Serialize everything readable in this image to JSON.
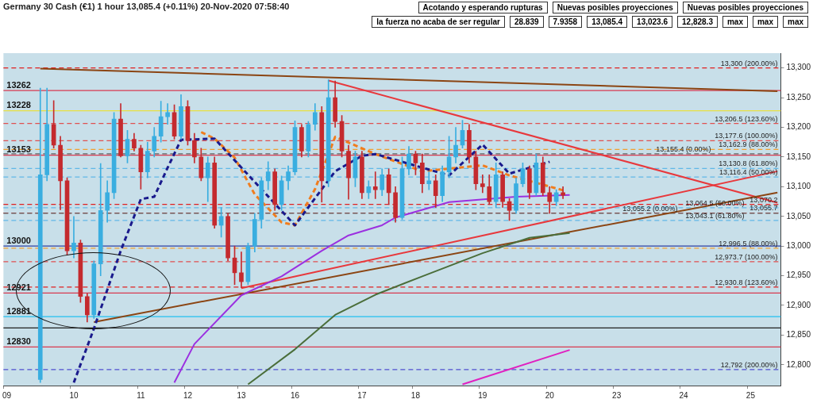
{
  "chart_data": {
    "type": "candlestick",
    "title": "Germany 30 Cash (€1)   1 hour   13,085.4 (+0.11%)   20-Nov-2020 07:58:40",
    "ylim": [
      12765,
      13325
    ],
    "yticks": [
      {
        "value": 12800,
        "label": "12,800"
      },
      {
        "value": 12850,
        "label": "12,850"
      },
      {
        "value": 12900,
        "label": "12,900"
      },
      {
        "value": 12950,
        "label": "12,950"
      },
      {
        "value": 13000,
        "label": "13,000"
      },
      {
        "value": 13050,
        "label": "13,050"
      },
      {
        "value": 13100,
        "label": "13,100"
      },
      {
        "value": 13150,
        "label": "13,150"
      },
      {
        "value": 13200,
        "label": "13,200"
      },
      {
        "value": 13250,
        "label": "13,250"
      },
      {
        "value": 13300,
        "label": "13,300"
      }
    ],
    "categories": [
      "09",
      null,
      null,
      null,
      null,
      null,
      null,
      null,
      null,
      null,
      "10",
      null,
      null,
      null,
      null,
      null,
      null,
      null,
      null,
      null,
      "11",
      null,
      null,
      null,
      null,
      null,
      null,
      "12",
      null,
      null,
      null,
      null,
      null,
      null,
      null,
      "13",
      null,
      null,
      null,
      null,
      null,
      null,
      null,
      "16",
      null,
      null,
      null,
      null,
      null,
      null,
      null,
      null,
      null,
      "17",
      null,
      null,
      null,
      null,
      null,
      null,
      null,
      "18",
      null,
      null,
      null,
      null,
      null,
      null,
      null,
      null,
      null,
      "19",
      null,
      null,
      null,
      null,
      null,
      null,
      null,
      null,
      null,
      "20",
      null,
      null,
      null,
      null,
      null,
      null,
      null,
      null,
      null,
      "23",
      null,
      null,
      null,
      null,
      null,
      null,
      null,
      null,
      null,
      "24",
      null,
      null,
      null,
      null,
      null,
      null,
      null,
      null,
      null,
      "25",
      null,
      null,
      null,
      null
    ],
    "ohlc": [
      null,
      null,
      null,
      null,
      null,
      [
        12775,
        13266,
        12770,
        13120
      ],
      [
        13120,
        13266,
        13110,
        13205
      ],
      [
        13205,
        13245,
        13165,
        13170
      ],
      [
        13170,
        13185,
        13061,
        13110
      ],
      [
        13110,
        13115,
        12985,
        12992
      ],
      [
        12992,
        13050,
        12980,
        13005
      ],
      [
        13005,
        13010,
        12905,
        12915
      ],
      [
        12915,
        12920,
        12872,
        12884
      ],
      [
        12884,
        12975,
        12878,
        12970
      ],
      [
        12970,
        13139,
        12950,
        13060
      ],
      [
        13060,
        13110,
        13040,
        13090
      ],
      [
        13090,
        13225,
        13080,
        13214
      ],
      [
        13214,
        13240,
        13150,
        13152
      ],
      [
        13152,
        13195,
        13140,
        13180
      ],
      [
        13180,
        13190,
        13160,
        13165
      ],
      [
        13165,
        13170,
        13096,
        13125
      ],
      [
        13125,
        13175,
        13115,
        13160
      ],
      [
        13160,
        13200,
        13150,
        13185
      ],
      [
        13185,
        13244,
        13175,
        13218
      ],
      [
        13218,
        13240,
        13205,
        13225
      ],
      [
        13225,
        13238,
        13180,
        13185
      ],
      [
        13185,
        13255,
        13180,
        13235
      ],
      [
        13235,
        13245,
        13170,
        13178
      ],
      [
        13178,
        13190,
        13140,
        13150
      ],
      [
        13150,
        13165,
        13110,
        13115
      ],
      [
        13115,
        13150,
        13075,
        13140
      ],
      [
        13140,
        13150,
        13030,
        13035
      ],
      [
        13035,
        13065,
        13015,
        13050
      ],
      [
        13050,
        13055,
        12975,
        12980
      ],
      [
        12980,
        13000,
        12935,
        12955
      ],
      [
        12955,
        12990,
        12930,
        12940
      ],
      [
        12940,
        13005,
        12935,
        13000
      ],
      [
        13000,
        13055,
        12990,
        13045
      ],
      [
        13045,
        13115,
        13030,
        13110
      ],
      [
        13110,
        13142,
        13095,
        13125
      ],
      [
        13125,
        13130,
        13060,
        13070
      ],
      [
        13070,
        13118,
        13060,
        13110
      ],
      [
        13110,
        13135,
        13095,
        13125
      ],
      [
        13125,
        13211,
        13120,
        13200
      ],
      [
        13200,
        13205,
        13150,
        13160
      ],
      [
        13160,
        13210,
        13150,
        13205
      ],
      [
        13205,
        13240,
        13195,
        13225
      ],
      [
        13225,
        13235,
        13074,
        13110
      ],
      [
        13110,
        13280,
        13100,
        13250
      ],
      [
        13250,
        13278,
        13200,
        13210
      ],
      [
        13210,
        13220,
        13150,
        13160
      ],
      [
        13160,
        13170,
        13079,
        13115
      ],
      [
        13115,
        13160,
        13100,
        13150
      ],
      [
        13150,
        13160,
        13080,
        13090
      ],
      [
        13090,
        13110,
        13080,
        13100
      ],
      [
        13100,
        13125,
        13080,
        13095
      ],
      [
        13095,
        13130,
        13085,
        13120
      ],
      [
        13120,
        13130,
        13070,
        13090
      ],
      [
        13090,
        13100,
        13040,
        13048
      ],
      [
        13048,
        13150,
        13045,
        13130
      ],
      [
        13130,
        13168,
        13120,
        13155
      ],
      [
        13155,
        13160,
        13120,
        13140
      ],
      [
        13140,
        13155,
        13090,
        13105
      ],
      [
        13105,
        13125,
        13095,
        13110
      ],
      [
        13110,
        13120,
        13065,
        13085
      ],
      [
        13085,
        13135,
        13075,
        13125
      ],
      [
        13125,
        13185,
        13115,
        13150
      ],
      [
        13150,
        13200,
        13140,
        13170
      ],
      [
        13170,
        13212,
        13165,
        13195
      ],
      [
        13195,
        13205,
        13140,
        13150
      ],
      [
        13150,
        13160,
        13095,
        13105
      ],
      [
        13105,
        13120,
        13090,
        13100
      ],
      [
        13100,
        13120,
        13070,
        13075
      ],
      [
        13075,
        13140,
        13065,
        13120
      ],
      [
        13120,
        13125,
        13065,
        13075
      ],
      [
        13075,
        13080,
        13043,
        13060
      ],
      [
        13060,
        13115,
        13055,
        13105
      ],
      [
        13105,
        13140,
        13100,
        13130
      ],
      [
        13130,
        13135,
        13080,
        13090
      ],
      [
        13090,
        13155,
        13085,
        13140
      ],
      [
        13140,
        13150,
        13085,
        13090
      ],
      [
        13090,
        13100,
        13055,
        13075
      ],
      [
        13075,
        13095,
        13068,
        13090
      ],
      [
        13090,
        13100,
        13080,
        13085.4
      ],
      null,
      null,
      null,
      null,
      null,
      null,
      null,
      null,
      null,
      null,
      null,
      null,
      null,
      null,
      null,
      null,
      null,
      null,
      null,
      null,
      null,
      null,
      null,
      null,
      null,
      null,
      null,
      null,
      null,
      null,
      null,
      null
    ],
    "colors": [
      null,
      null,
      null,
      null,
      null,
      "#3aaee0",
      "#3aaee0",
      "#c42a2e",
      "#c42a2e",
      "#c42a2e",
      "#3aaee0",
      "#c42a2e",
      "#c42a2e",
      "#3aaee0",
      "#3aaee0",
      "#3aaee0",
      "#3aaee0",
      "#c42a2e",
      "#3aaee0",
      "#c42a2e",
      "#c42a2e",
      "#3aaee0",
      "#3aaee0",
      "#3aaee0",
      "#3aaee0",
      "#c42a2e",
      "#3aaee0",
      "#c42a2e",
      "#c42a2e",
      "#c42a2e",
      "#3aaee0",
      "#c42a2e",
      "#3aaee0",
      "#c42a2e",
      "#c42a2e",
      "#c42a2e",
      "#3aaee0",
      "#3aaee0",
      "#3aaee0",
      "#3aaee0",
      "#c42a2e",
      "#3aaee0",
      "#3aaee0",
      "#3aaee0",
      "#c42a2e",
      "#3aaee0",
      "#3aaee0",
      "#c42a2e",
      "#3aaee0",
      "#c42a2e",
      "#c42a2e",
      "#c42a2e",
      "#3aaee0",
      "#c42a2e",
      "#3aaee0",
      "#c42a2e",
      "#3aaee0",
      "#c42a2e",
      "#c42a2e",
      "#3aaee0",
      "#3aaee0",
      "#c42a2e",
      "#c42a2e",
      "#3aaee0",
      "#c42a2e",
      "#3aaee0",
      "#3aaee0",
      "#3aaee0",
      "#3aaee0",
      "#c42a2e",
      "#c42a2e",
      "#c42a2e",
      "#c42a2e",
      "#3aaee0",
      "#c42a2e",
      "#c42a2e",
      "#3aaee0",
      "#3aaee0",
      "#c42a2e",
      "#3aaee0",
      "#c42a2e",
      "#c42a2e",
      "#3aaee0",
      "#c42a2e",
      null,
      null,
      null,
      null,
      null,
      null,
      null,
      null,
      null,
      null,
      null,
      null,
      null,
      null,
      null,
      null,
      null,
      null,
      null,
      null,
      null,
      null,
      null,
      null,
      null,
      null,
      null,
      null,
      null,
      null,
      null,
      null
    ],
    "series": [
      {
        "type": "line",
        "color": "#1a1a8c",
        "line_style": "dashed",
        "values": [
          null,
          null,
          null,
          null,
          null,
          null,
          null,
          null,
          null,
          null,
          12770,
          null,
          null,
          12861,
          null,
          null,
          null,
          12992,
          null,
          null,
          13079,
          null,
          13083,
          null,
          13132,
          null,
          13179,
          null,
          null,
          null,
          null,
          13181,
          null,
          null,
          null,
          null,
          null,
          null,
          null,
          null,
          null,
          null,
          null,
          13035,
          null,
          null,
          null,
          null,
          null,
          13126,
          null,
          null,
          null,
          13152,
          null,
          13155,
          null,
          null,
          null,
          null,
          null,
          null,
          null,
          null,
          null,
          null,
          13119,
          null,
          null,
          null,
          null,
          13171,
          null,
          null,
          null,
          13122,
          null,
          null,
          null,
          null,
          null,
          13142,
          null,
          null,
          null,
          null,
          null,
          null,
          null,
          null,
          null,
          null,
          null,
          null,
          null,
          null,
          null,
          null,
          null,
          null,
          null,
          null,
          null,
          null,
          null,
          null,
          null,
          null,
          null,
          null,
          null,
          null,
          null,
          null,
          null,
          null
        ]
      },
      {
        "type": "line",
        "color": "#f07d1e",
        "line_style": "dashed",
        "values": [
          null,
          null,
          null,
          null,
          null,
          null,
          null,
          null,
          null,
          null,
          null,
          null,
          null,
          null,
          null,
          null,
          null,
          null,
          null,
          null,
          null,
          null,
          null,
          null,
          null,
          null,
          null,
          null,
          null,
          13192,
          null,
          13181,
          null,
          null,
          13149,
          null,
          null,
          13087,
          null,
          null,
          null,
          13040,
          null,
          13035,
          null,
          null,
          13096,
          null,
          null,
          13184,
          null,
          null,
          null,
          null,
          null,
          13155,
          null,
          null,
          null,
          null,
          null,
          null,
          13126,
          null,
          null,
          null,
          null,
          null,
          null,
          null,
          null,
          13136,
          null,
          null,
          null,
          13119,
          null,
          null,
          null,
          null,
          null,
          null,
          null,
          13094,
          null,
          null,
          null,
          null,
          null,
          null,
          null,
          null,
          null,
          null,
          null,
          null,
          null,
          null,
          null,
          null,
          null,
          null,
          null,
          null,
          null,
          null,
          null,
          null,
          null,
          null,
          null,
          null,
          null,
          null,
          null,
          null
        ]
      },
      {
        "type": "line",
        "color": "#9b30e0",
        "values": [
          null,
          null,
          null,
          null,
          null,
          null,
          null,
          null,
          null,
          null,
          null,
          null,
          null,
          null,
          null,
          null,
          null,
          null,
          null,
          null,
          null,
          null,
          null,
          null,
          null,
          12770,
          null,
          null,
          12835,
          null,
          null,
          null,
          null,
          null,
          null,
          12917,
          null,
          null,
          null,
          null,
          null,
          12949,
          null,
          null,
          null,
          null,
          null,
          12992,
          null,
          null,
          null,
          13018,
          null,
          null,
          null,
          null,
          13035,
          null,
          13048,
          null,
          null,
          null,
          null,
          null,
          null,
          null,
          13074,
          null,
          null,
          null,
          null,
          null,
          null,
          null,
          null,
          null,
          13083,
          null,
          null,
          null,
          null,
          null,
          null,
          null,
          13086,
          null,
          null,
          null,
          null,
          null,
          null,
          null,
          null,
          null,
          null,
          null,
          null,
          null,
          null,
          null,
          null,
          null,
          null,
          null,
          null,
          null,
          null,
          null,
          null,
          null,
          null,
          null,
          null,
          null,
          null,
          null
        ]
      },
      {
        "type": "line",
        "color": "#4a6e3a",
        "values": [
          null,
          null,
          null,
          null,
          null,
          null,
          null,
          null,
          null,
          null,
          null,
          null,
          null,
          null,
          null,
          null,
          null,
          null,
          null,
          null,
          null,
          null,
          null,
          null,
          null,
          null,
          null,
          null,
          null,
          null,
          null,
          null,
          null,
          null,
          null,
          null,
          12767,
          null,
          null,
          null,
          null,
          null,
          null,
          12826,
          null,
          null,
          null,
          null,
          null,
          12884,
          null,
          null,
          null,
          null,
          null,
          12918,
          null,
          null,
          null,
          null,
          null,
          null,
          12949,
          null,
          null,
          null,
          null,
          null,
          null,
          null,
          null,
          12988,
          null,
          null,
          null,
          null,
          null,
          null,
          13014,
          null,
          null,
          null,
          null,
          null,
          13022,
          null,
          null,
          null,
          null,
          null,
          null,
          null,
          null,
          null,
          null,
          null,
          null,
          null,
          null,
          null,
          null,
          null,
          null,
          null,
          null,
          null,
          null,
          null,
          null,
          null,
          null,
          null,
          null,
          null,
          null,
          null
        ]
      },
      {
        "type": "line",
        "color": "#e020c0",
        "values": [
          null,
          null,
          null,
          null,
          null,
          null,
          null,
          null,
          null,
          null,
          null,
          null,
          null,
          null,
          null,
          null,
          null,
          null,
          null,
          null,
          null,
          null,
          null,
          null,
          null,
          null,
          null,
          null,
          null,
          null,
          null,
          null,
          null,
          null,
          null,
          null,
          null,
          null,
          null,
          null,
          null,
          null,
          null,
          null,
          null,
          null,
          null,
          null,
          null,
          null,
          null,
          null,
          null,
          null,
          null,
          null,
          null,
          null,
          null,
          null,
          null,
          null,
          null,
          null,
          null,
          null,
          null,
          null,
          12767,
          null,
          null,
          null,
          null,
          null,
          null,
          null,
          null,
          null,
          null,
          null,
          null,
          null,
          null,
          null,
          12825,
          null,
          null,
          null,
          null,
          null,
          null,
          null,
          null,
          null,
          null,
          null,
          null,
          null,
          null,
          null,
          null,
          null,
          null,
          null,
          null,
          null,
          null,
          null,
          null,
          null,
          null,
          null,
          null,
          null,
          null,
          null
        ]
      },
      {
        "type": "line",
        "color": "#8b4513",
        "values": [
          null,
          null,
          null,
          null,
          null,
          13299,
          null,
          null,
          null,
          null,
          null,
          null,
          null,
          null,
          null,
          null,
          null,
          null,
          null,
          null,
          null,
          null,
          null,
          null,
          null,
          null,
          null,
          null,
          null,
          null,
          null,
          null,
          null,
          null,
          null,
          null,
          null,
          null,
          null,
          null,
          null,
          null,
          null,
          null,
          null,
          null,
          null,
          null,
          null,
          null,
          null,
          null,
          null,
          null,
          null,
          null,
          null,
          null,
          null,
          null,
          null,
          null,
          null,
          null,
          null,
          null,
          null,
          null,
          null,
          null,
          null,
          null,
          null,
          null,
          null,
          null,
          null,
          null,
          null,
          null,
          null,
          null,
          null,
          null,
          null,
          null,
          null,
          null,
          null,
          null,
          null,
          null,
          null,
          null,
          null,
          null,
          null,
          null,
          null,
          null,
          null,
          null,
          null,
          null,
          null,
          null,
          null,
          null,
          null,
          null,
          null,
          null,
          null,
          null,
          null,
          13261
        ]
      },
      {
        "type": "line",
        "color": "#8b4513",
        "values": [
          null,
          null,
          null,
          null,
          null,
          null,
          null,
          null,
          null,
          null,
          null,
          null,
          null,
          12872,
          null,
          null,
          null,
          null,
          null,
          null,
          null,
          null,
          null,
          null,
          null,
          null,
          null,
          null,
          null,
          null,
          null,
          null,
          null,
          null,
          null,
          null,
          null,
          null,
          null,
          null,
          null,
          null,
          null,
          null,
          null,
          null,
          null,
          null,
          null,
          null,
          null,
          null,
          null,
          null,
          null,
          null,
          null,
          null,
          null,
          null,
          null,
          null,
          null,
          null,
          null,
          null,
          null,
          null,
          null,
          null,
          null,
          null,
          null,
          null,
          null,
          null,
          null,
          null,
          null,
          null,
          null,
          null,
          null,
          null,
          null,
          null,
          null,
          null,
          null,
          null,
          null,
          null,
          null,
          null,
          null,
          null,
          null,
          null,
          null,
          null,
          null,
          null,
          null,
          null,
          null,
          null,
          null,
          null,
          null,
          null,
          null,
          null,
          null,
          null,
          null,
          13090
        ]
      },
      {
        "type": "line",
        "color": "#e8383c",
        "values": [
          null,
          null,
          null,
          null,
          null,
          null,
          null,
          null,
          null,
          null,
          null,
          null,
          null,
          null,
          null,
          null,
          null,
          null,
          null,
          null,
          null,
          null,
          null,
          null,
          null,
          null,
          null,
          null,
          null,
          null,
          null,
          null,
          null,
          null,
          null,
          null,
          null,
          null,
          null,
          null,
          null,
          null,
          null,
          null,
          null,
          null,
          null,
          null,
          13279,
          null,
          null,
          null,
          null,
          null,
          null,
          null,
          null,
          null,
          null,
          null,
          null,
          null,
          null,
          null,
          null,
          null,
          null,
          null,
          null,
          null,
          null,
          null,
          null,
          null,
          null,
          null,
          null,
          null,
          null,
          null,
          null,
          null,
          null,
          null,
          null,
          null,
          null,
          null,
          null,
          null,
          null,
          null,
          null,
          null,
          null,
          null,
          null,
          null,
          null,
          null,
          null,
          null,
          null,
          null,
          null,
          null,
          null,
          null,
          null,
          null,
          null,
          null,
          null,
          null,
          null,
          13073
        ]
      },
      {
        "type": "line",
        "color": "#e8383c",
        "values": [
          null,
          null,
          null,
          null,
          null,
          null,
          null,
          null,
          null,
          null,
          null,
          null,
          null,
          null,
          null,
          null,
          null,
          null,
          null,
          null,
          null,
          null,
          null,
          null,
          null,
          null,
          null,
          null,
          null,
          null,
          null,
          null,
          null,
          null,
          null,
          12929,
          null,
          null,
          null,
          null,
          null,
          null,
          null,
          null,
          null,
          null,
          null,
          null,
          null,
          null,
          null,
          null,
          null,
          null,
          null,
          null,
          null,
          null,
          null,
          null,
          null,
          null,
          null,
          null,
          null,
          null,
          null,
          null,
          null,
          null,
          null,
          null,
          null,
          null,
          null,
          null,
          null,
          null,
          null,
          null,
          null,
          null,
          null,
          null,
          null,
          null,
          null,
          null,
          null,
          null,
          null,
          null,
          null,
          null,
          null,
          null,
          null,
          null,
          null,
          null,
          null,
          null,
          null,
          null,
          null,
          null,
          null,
          null,
          null,
          null,
          null,
          null,
          null,
          null,
          null,
          13126
        ]
      }
    ],
    "ref_lines": [
      {
        "axis": "y",
        "value": 13300,
        "label": "13,300 (200.00%)",
        "color": "#e02020",
        "line_style": "dashed"
      },
      {
        "axis": "y",
        "value": 13262,
        "label": "13262",
        "color": "#d83a50"
      },
      {
        "axis": "y",
        "value": 13228,
        "label": "13228",
        "color": "#e8e040"
      },
      {
        "axis": "y",
        "value": 13206.5,
        "label": "13,206.5 (123.60%)",
        "color": "#e05050",
        "line_style": "dashed"
      },
      {
        "axis": "y",
        "value": 13177.6,
        "label": "13,177.6 (100.00%)",
        "color": "#e05050",
        "line_style": "dashed"
      },
      {
        "axis": "y",
        "value": 13162.9,
        "label": "13,162.9 (88.00%)",
        "color": "#f0a030",
        "line_style": "dashed"
      },
      {
        "axis": "y",
        "value": 13155.4,
        "label": "13,155.4 (0.00%)",
        "color": "#606060",
        "line_style": "dashed"
      },
      {
        "axis": "y",
        "value": 13153,
        "label": "13153",
        "color": "#d83a50"
      },
      {
        "axis": "y",
        "value": 13130.8,
        "label": "13,130.8 (61.80%)",
        "color": "#60b8e8",
        "line_style": "dashed"
      },
      {
        "axis": "y",
        "value": 13116.4,
        "label": "13,116.4 (50.00%)",
        "color": "#60b8e8",
        "line_style": "dashed"
      },
      {
        "axis": "y",
        "value": 13070.2,
        "label": "13,070.2",
        "color": "#e02020",
        "line_style": "dashed"
      },
      {
        "axis": "y",
        "value": 13064.5,
        "label": "13,064.5 (50.00%)",
        "color": "#60b8e8",
        "line_style": "dashed"
      },
      {
        "axis": "y",
        "value": 13055.7,
        "label": "13,055.7",
        "color": "#e02020",
        "line_style": "dashed"
      },
      {
        "axis": "y",
        "value": 13055.2,
        "label": "13,055.2 (0.00%)",
        "color": "#606060",
        "line_style": "dashed"
      },
      {
        "axis": "y",
        "value": 13043.1,
        "label": "13,043.1 (61.80%)",
        "color": "#60b8e8",
        "line_style": "dashed"
      },
      {
        "axis": "y",
        "value": 13000,
        "label": "13000",
        "color": "#3040a0"
      },
      {
        "axis": "y",
        "value": 12996.5,
        "label": "12,996.5 (88.00%)",
        "color": "#f0a030",
        "line_style": "dashed"
      },
      {
        "axis": "y",
        "value": 12973.7,
        "label": "12,973.7 (100.00%)",
        "color": "#e05050",
        "line_style": "dashed"
      },
      {
        "axis": "y",
        "value": 12930.8,
        "label": "12,930.8 (123.60%)",
        "color": "#e02020",
        "line_style": "dashed"
      },
      {
        "axis": "y",
        "value": 12921,
        "label": "12921",
        "color": "#d83a50"
      },
      {
        "axis": "y",
        "value": 12881,
        "label": "12881",
        "color": "#20c0f0"
      },
      {
        "axis": "y",
        "value": 12862,
        "color": "#202020"
      },
      {
        "axis": "y",
        "value": 12830,
        "label": "12830",
        "color": "#d83a50"
      },
      {
        "axis": "y",
        "value": 12792,
        "label": "12,792 (200.00%)",
        "color": "#5050d0",
        "line_style": "dashed"
      }
    ],
    "annotations": [
      "Acotando y esperando rupturas",
      "Nuevas posibles proyecciones",
      "Nuevas posibles proyecciones",
      "la fuerza no acaba de ser regular",
      "28.839",
      "7.9358",
      "13,085.4",
      "13,023.6",
      "12,828.3",
      "max",
      "max",
      "max"
    ]
  }
}
